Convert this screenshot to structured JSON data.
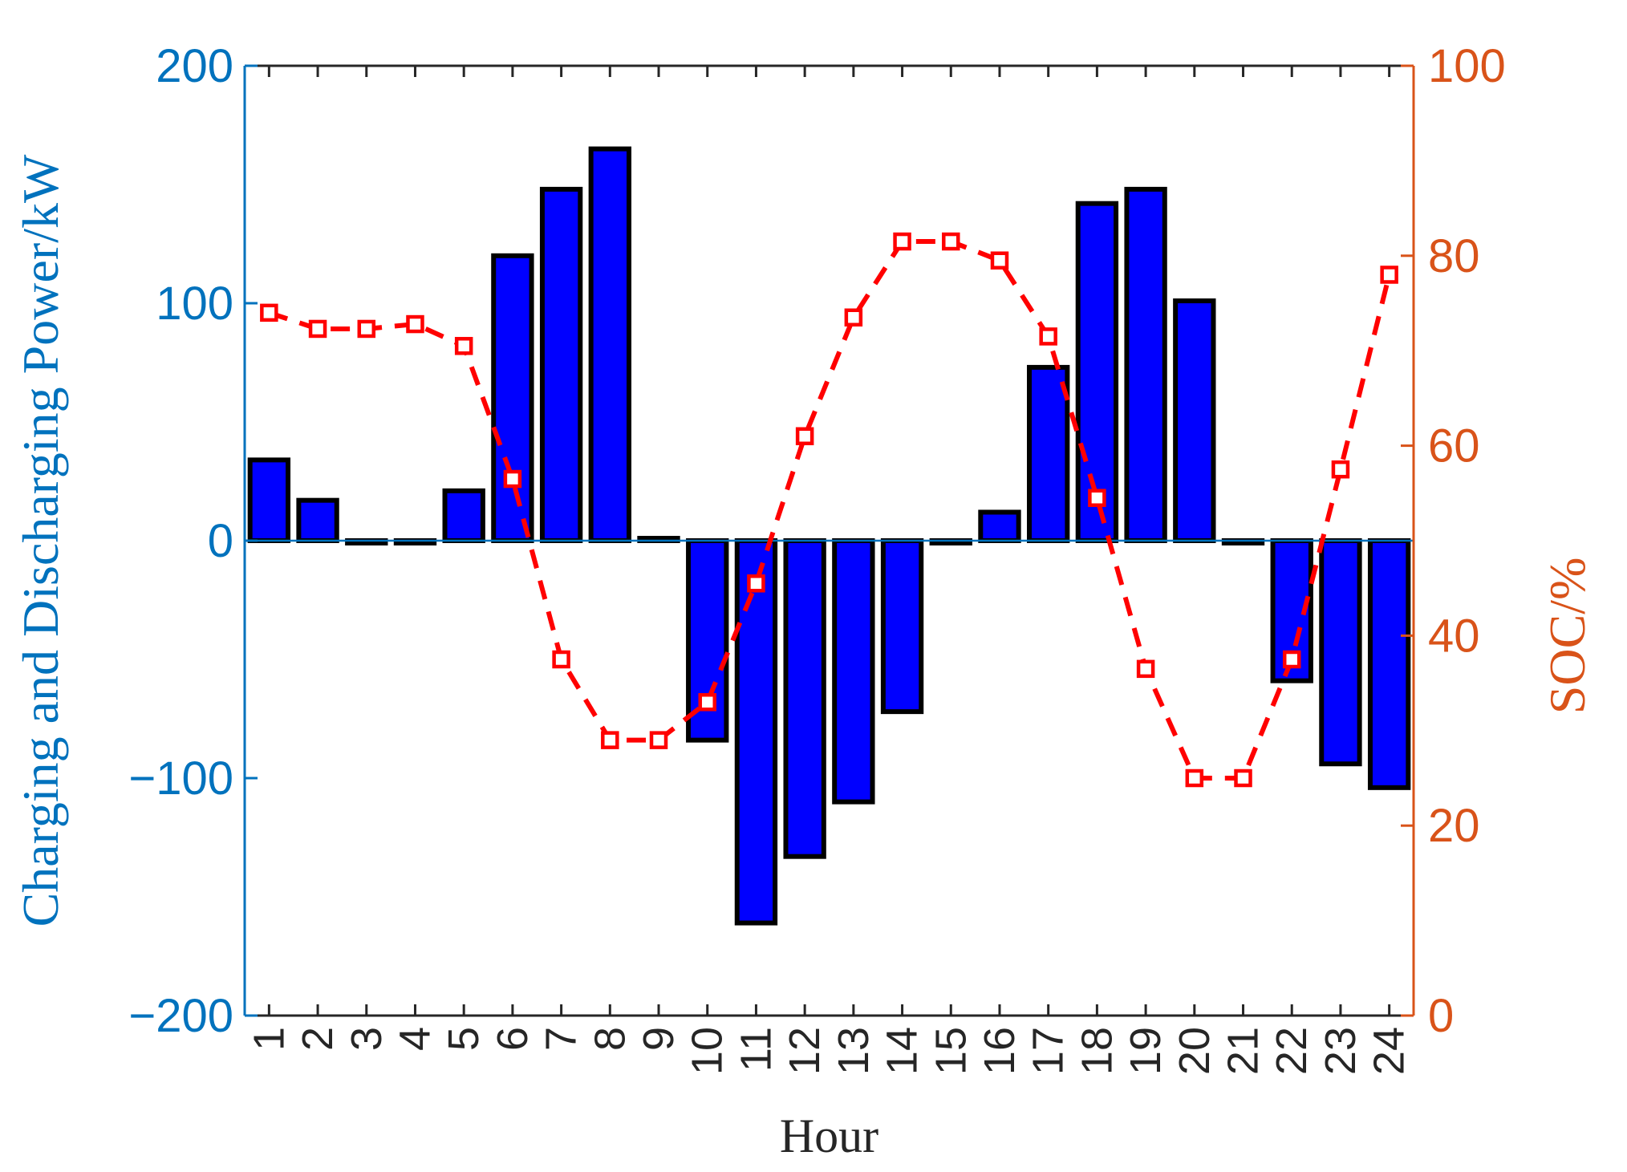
{
  "chart_data": {
    "type": "bar",
    "xlabel": "Hour",
    "ylabel_left": "Charging and Discharging Power/kW",
    "ylabel_right": "SOC/%",
    "categories": [
      "1",
      "2",
      "3",
      "4",
      "5",
      "6",
      "7",
      "8",
      "9",
      "10",
      "11",
      "12",
      "13",
      "14",
      "15",
      "16",
      "17",
      "18",
      "19",
      "20",
      "21",
      "22",
      "23",
      "24"
    ],
    "left_axis": {
      "ylim": [
        -200,
        200
      ],
      "ticks": [
        "200",
        "100",
        "0",
        "−100",
        "−200"
      ],
      "tick_values": [
        200,
        100,
        0,
        -100,
        -200
      ]
    },
    "right_axis": {
      "ylim": [
        0,
        100
      ],
      "ticks": [
        "100",
        "80",
        "60",
        "40",
        "20",
        "0"
      ],
      "tick_values": [
        100,
        80,
        60,
        40,
        20,
        0
      ]
    },
    "series": [
      {
        "type": "bar",
        "axis": "left",
        "values": [
          34,
          17,
          -1,
          -1,
          21,
          120,
          148,
          165,
          1,
          -84,
          -161,
          -133,
          -110,
          -72,
          -1,
          12,
          73,
          142,
          148,
          101,
          -1,
          -59,
          -94,
          -104
        ]
      },
      {
        "type": "line",
        "axis": "right",
        "style": "dashed-square-markers",
        "values": [
          74,
          72.3,
          72.3,
          72.8,
          70.5,
          56.5,
          37.5,
          29,
          29,
          33,
          45.5,
          61,
          73.5,
          81.5,
          81.5,
          79.5,
          71.5,
          54.5,
          36.5,
          25,
          25,
          37.5,
          57.5,
          78
        ]
      }
    ],
    "colors": {
      "bar_fill": "#0000ff",
      "bar_edge": "#000000",
      "line": "#ff0000",
      "left_axis": "#0072bd",
      "right_axis": "#d95319",
      "text_dark": "#262626"
    },
    "grid": false
  }
}
